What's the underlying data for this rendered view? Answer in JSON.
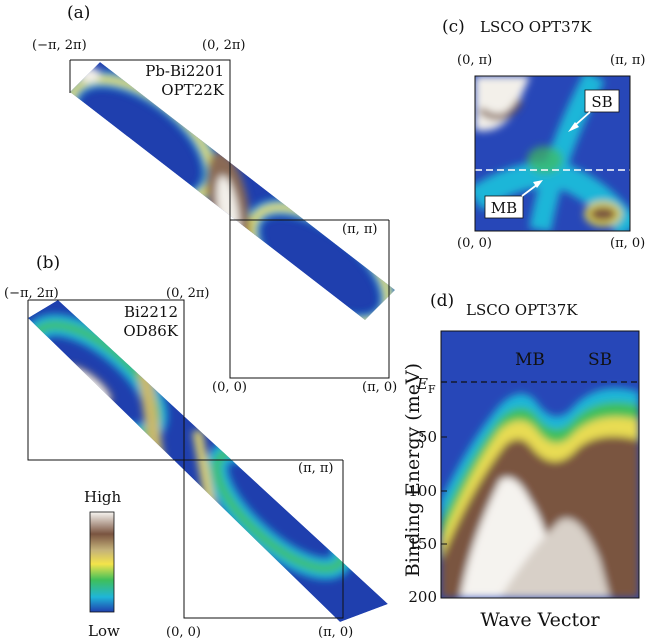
{
  "figure": {
    "panel_a": {
      "letter": "(a)",
      "sample": [
        "Pb-Bi2201",
        "OPT22K"
      ],
      "corners": {
        "top_left": "(−π, 2π)",
        "top_mid": "(0, 2π)",
        "mid_right": "(π, π)",
        "bottom_mid": "(0, 0)",
        "bottom_right": "(π, 0)"
      }
    },
    "panel_b": {
      "letter": "(b)",
      "sample": [
        "Bi2212",
        "OD86K"
      ],
      "corners": {
        "top_left": "(−π, 2π)",
        "top_mid": "(0, 2π)",
        "mid_right": "(π, π)",
        "bottom_mid": "(0, 0)",
        "bottom_right": "(π, 0)"
      }
    },
    "panel_c": {
      "letter": "(c)",
      "title": "LSCO  OPT37K",
      "corners": {
        "top_left": "(0, π)",
        "top_right": "(π, π)",
        "bottom_left": "(0, 0)",
        "bottom_right": "(π, 0)"
      },
      "labels": {
        "sb": "SB",
        "mb": "MB"
      }
    },
    "panel_d": {
      "letter": "(d)",
      "title": "LSCO  OPT37K",
      "labels": {
        "mb": "MB",
        "sb": "SB",
        "ef": "E",
        "ef_sub": "F"
      },
      "y_label": "Binding Energy (meV)",
      "x_label": "Wave Vector",
      "y_ticks": [
        "50",
        "100",
        "150",
        "200"
      ]
    },
    "colorbar": {
      "high": "High",
      "low": "Low"
    },
    "colors": {
      "low": "#1f3fae",
      "cyan": "#1fb6d8",
      "green": "#3fbf5a",
      "yellow": "#f4e44a",
      "brown": "#7a5440",
      "high": "#f5f3ef"
    }
  }
}
